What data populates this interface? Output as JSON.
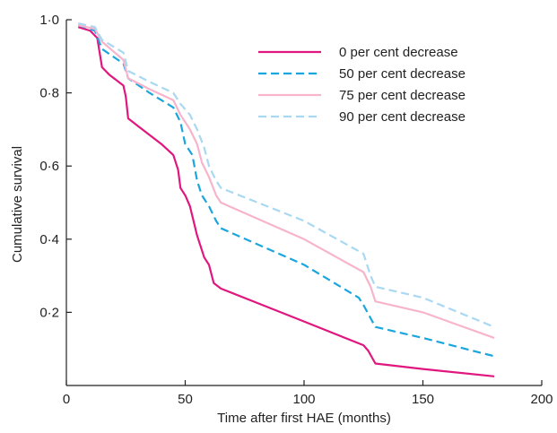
{
  "chart_data": {
    "type": "line",
    "title": "",
    "xlabel": "Time after first HAE (months)",
    "ylabel": "Cumulative survival",
    "xlim": [
      0,
      200
    ],
    "ylim": [
      0,
      1.0
    ],
    "x_ticks": [
      0,
      50,
      100,
      150,
      200
    ],
    "x_tick_labels": [
      "0",
      "50",
      "100",
      "150",
      "200"
    ],
    "y_ticks": [
      0.2,
      0.4,
      0.6,
      0.8,
      1.0
    ],
    "y_tick_labels": [
      "0·2",
      "0·4",
      "0·6",
      "0·8",
      "1·0"
    ],
    "grid": false,
    "legend_position": "top-right",
    "series": [
      {
        "name": "0 per cent decrease",
        "color": "#e0177e",
        "dash": "solid",
        "points": [
          [
            5,
            0.98
          ],
          [
            10,
            0.97
          ],
          [
            13,
            0.95
          ],
          [
            15,
            0.87
          ],
          [
            18,
            0.85
          ],
          [
            22,
            0.83
          ],
          [
            24,
            0.82
          ],
          [
            25,
            0.79
          ],
          [
            26,
            0.73
          ],
          [
            30,
            0.71
          ],
          [
            40,
            0.66
          ],
          [
            45,
            0.63
          ],
          [
            47,
            0.59
          ],
          [
            48,
            0.54
          ],
          [
            50,
            0.52
          ],
          [
            52,
            0.49
          ],
          [
            55,
            0.41
          ],
          [
            58,
            0.35
          ],
          [
            60,
            0.33
          ],
          [
            62,
            0.28
          ],
          [
            65,
            0.265
          ],
          [
            100,
            0.175
          ],
          [
            125,
            0.11
          ],
          [
            127,
            0.095
          ],
          [
            130,
            0.06
          ],
          [
            150,
            0.045
          ],
          [
            180,
            0.025
          ]
        ]
      },
      {
        "name": "50 per cent decrease",
        "color": "#1aa6dd",
        "dash": "dashed",
        "points": [
          [
            5,
            0.985
          ],
          [
            12,
            0.97
          ],
          [
            15,
            0.92
          ],
          [
            24,
            0.88
          ],
          [
            26,
            0.84
          ],
          [
            35,
            0.8
          ],
          [
            45,
            0.76
          ],
          [
            48,
            0.72
          ],
          [
            50,
            0.66
          ],
          [
            53,
            0.63
          ],
          [
            55,
            0.56
          ],
          [
            57,
            0.52
          ],
          [
            60,
            0.49
          ],
          [
            63,
            0.45
          ],
          [
            65,
            0.43
          ],
          [
            100,
            0.33
          ],
          [
            123,
            0.24
          ],
          [
            125,
            0.22
          ],
          [
            130,
            0.16
          ],
          [
            150,
            0.13
          ],
          [
            180,
            0.08
          ]
        ]
      },
      {
        "name": "75 per cent decrease",
        "color": "#f7b4cb",
        "dash": "solid",
        "points": [
          [
            5,
            0.985
          ],
          [
            12,
            0.975
          ],
          [
            15,
            0.94
          ],
          [
            24,
            0.89
          ],
          [
            26,
            0.84
          ],
          [
            35,
            0.81
          ],
          [
            45,
            0.78
          ],
          [
            48,
            0.74
          ],
          [
            52,
            0.7
          ],
          [
            55,
            0.66
          ],
          [
            57,
            0.61
          ],
          [
            60,
            0.57
          ],
          [
            63,
            0.52
          ],
          [
            65,
            0.5
          ],
          [
            100,
            0.4
          ],
          [
            125,
            0.31
          ],
          [
            128,
            0.27
          ],
          [
            130,
            0.23
          ],
          [
            150,
            0.2
          ],
          [
            180,
            0.13
          ]
        ]
      },
      {
        "name": "90 per cent decrease",
        "color": "#a9d8f2",
        "dash": "dashed",
        "points": [
          [
            5,
            0.99
          ],
          [
            12,
            0.98
          ],
          [
            15,
            0.945
          ],
          [
            24,
            0.91
          ],
          [
            26,
            0.86
          ],
          [
            35,
            0.83
          ],
          [
            45,
            0.8
          ],
          [
            48,
            0.77
          ],
          [
            52,
            0.74
          ],
          [
            55,
            0.7
          ],
          [
            58,
            0.65
          ],
          [
            60,
            0.6
          ],
          [
            63,
            0.56
          ],
          [
            65,
            0.54
          ],
          [
            100,
            0.45
          ],
          [
            125,
            0.36
          ],
          [
            128,
            0.3
          ],
          [
            130,
            0.27
          ],
          [
            150,
            0.24
          ],
          [
            180,
            0.16
          ]
        ]
      }
    ]
  }
}
